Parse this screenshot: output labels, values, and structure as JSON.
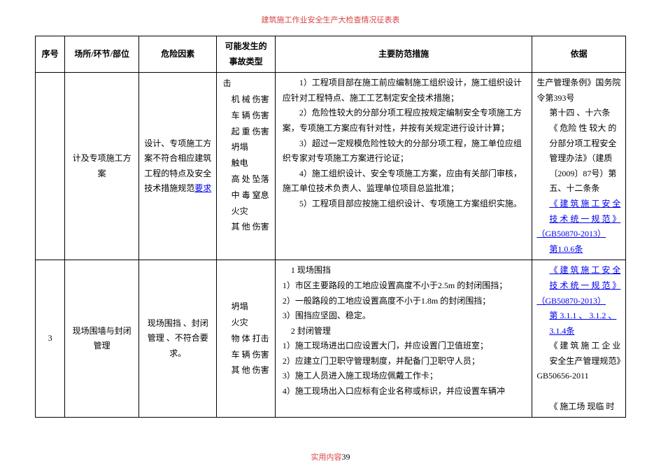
{
  "header": {
    "title": "建筑施工作业安全生产大检查情况征表表"
  },
  "table": {
    "headers": {
      "seq": "序号",
      "place": "场所/环节/部位",
      "risk": "危险因素",
      "accident": "可能发生的事故类型",
      "measure": "主要防范措施",
      "basis": "依据"
    },
    "row2": {
      "seq": "",
      "place": "计及专项施工方案",
      "risk_p1": "设计、专项施工方案不符合相应建筑工程的特点及安全技术措施规范",
      "risk_link": "要求",
      "accident": "击\n　机 械 伤害\n　车 辆 伤害\n　起 重 伤害\n　坍塌\n　触电\n　高 处 坠落\n　中 毒 窒息\n　火灾\n　其 他 伤害",
      "measure": "　　1）工程项目部在施工前应编制施工组织设计，施工组织设计应针对工程特点、施工工艺制定安全技术措施；\n　　2）危险性较大的分部分项工程应按规定编制安全专项施工方案，专项施工方案应有针对性，并按有关规定进行设计计算；\n　　3）超过一定规模危险性较大的分部分项工程，施工单位应组织专家对专项施工方案进行论证；\n　　4）施工组织设计、安全专项施工方案，应由有关部门审核，施工单位技术负责人、监理单位项目总监批准；\n　　5）工程项目部应按施工组织设计、专项施工方案组织实施。",
      "basis_p1": "生产管理条例》国务院令第393号",
      "basis_p2": "第十四 、十六条",
      "basis_p3": "《 危险 性 较大 的分部分项工程安全管理办法》（建质〔2009〕87号）第五、十二条条",
      "basis_link1": "《 建 筑 施 工 安 全技 术 统 一 规 范 》",
      "basis_code1": "（GB50870-2013）",
      "basis_clause1": "第1.0.6条"
    },
    "row3": {
      "seq": "3",
      "place": "现场围墙与封闭管理",
      "risk": "现场围挡 、封闭管理 、不符合要求。",
      "accident": "　坍塌\n　火灾\n　物 体 打击\n　车 辆 伤害\n　其 他 伤害",
      "measure": "　1 现场围挡\n1）市区主要路段的工地应设置高度不小于2.5m 的封闭围挡；\n2）一般路段的工地应设置高度不小于1.8m 的封闭围挡；\n3）围挡应坚固、稳定。\n　2 封闭管理\n1）施工现场进出口应设置大门，并应设置门卫值班室；\n2）应建立门卫职守管理制度，并配备门卫职守人员；\n3）施工人员进入施工现场应佩戴工作卡；\n4）施工现场出入口应标有企业名称或标识，并应设置车辆冲",
      "basis_link1": "《 建 筑 施 工 安 全技 术 统 一 规 范 》",
      "basis_code1": "（GB50870-2013）",
      "basis_clause1": "第 3.1.1 、 3.1.2 、3.1.4条",
      "basis_p2": "《 建 筑 施 工 企 业安全生产管理规范》",
      "basis_code2": "GB50656-2011",
      "basis_p3": "《 施工场 现临 时"
    }
  },
  "footer": {
    "label": "实用内容",
    "page": "39"
  }
}
